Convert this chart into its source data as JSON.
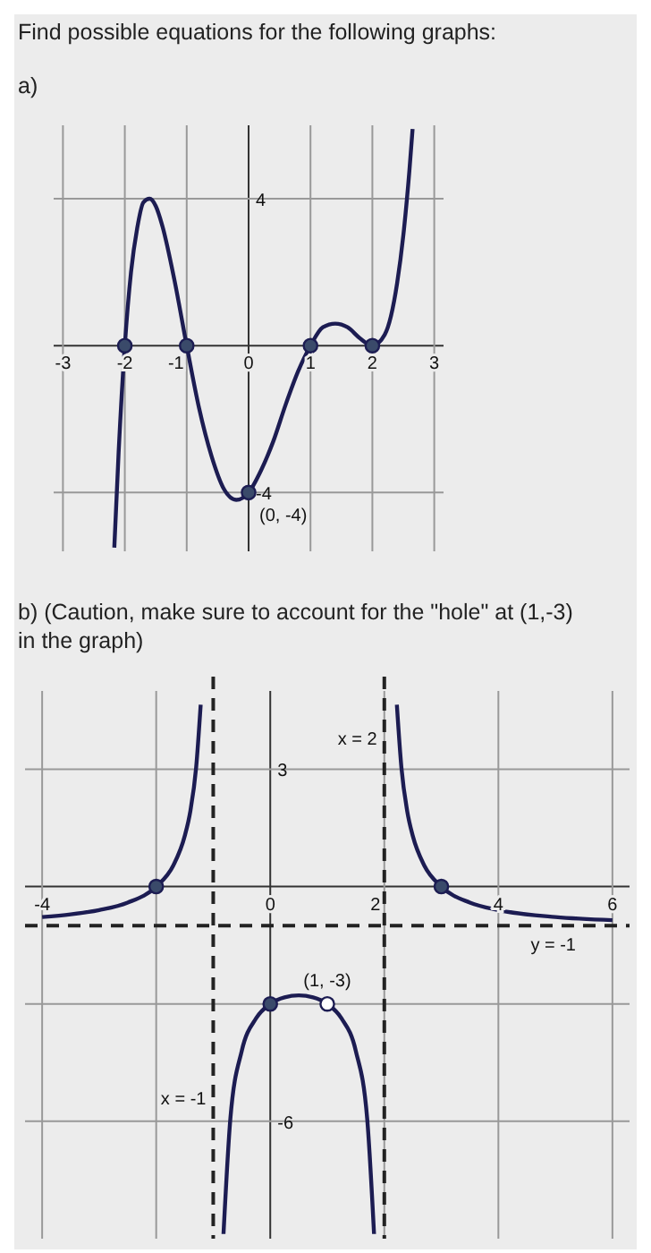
{
  "chart_data": [
    {
      "type": "line",
      "title": "Find possible equations for the following graphs:",
      "subtitle": "a)",
      "xlim": [
        -3.15,
        3.15
      ],
      "ylim": [
        -5.6,
        6
      ],
      "xticks": [
        -3,
        -2,
        -1,
        0,
        1,
        2,
        3
      ],
      "yticks": [
        {
          "value": -4,
          "label": "-4"
        },
        4
      ],
      "grid": true,
      "series": [
        {
          "type": "line",
          "color": "#1c1c52",
          "x": [
            -2.17,
            -2.1,
            -2,
            -1.9,
            -1.8,
            -1.7,
            -1.6,
            -1.5,
            -1.4,
            -1.2,
            -1,
            -0.8,
            -0.6,
            -0.4,
            -0.2,
            0,
            0.2,
            0.4,
            0.6,
            0.8,
            1,
            1.2,
            1.4,
            1.6,
            1.8,
            2,
            2.2,
            2.4,
            2.5,
            2.6,
            2.65
          ],
          "values": [
            -5.5,
            -2.9,
            0,
            2,
            3.2,
            3.9,
            4,
            3.8,
            3.3,
            1.8,
            0,
            -1.7,
            -3,
            -3.9,
            -4.2,
            -4,
            -3.4,
            -2.6,
            -1.6,
            -0.7,
            0,
            0.5,
            0.6,
            0.5,
            0.2,
            0,
            0.3,
            1.7,
            3,
            4.8,
            5.9
          ]
        },
        {
          "type": "scatter",
          "marker": "circle",
          "color": "#3a4a6a",
          "x": [
            -2,
            -1,
            0,
            1,
            2
          ],
          "values": [
            0,
            0,
            -4,
            0,
            0
          ]
        }
      ],
      "annotations": [
        {
          "text": "(0, -4)",
          "x": 0,
          "y": -4
        }
      ]
    },
    {
      "type": "line",
      "title": "b) (Caution, make sure to account for the \"hole\" at (1,-3) in the graph)",
      "xlim": [
        -4.3,
        6.3
      ],
      "ylim": [
        -9,
        5
      ],
      "xticks": [
        -4,
        {
          "value": -2,
          "label": null
        },
        0,
        2,
        4,
        6
      ],
      "yticks": [
        {
          "value": -6,
          "label": "-6"
        },
        {
          "value": -3,
          "label": null
        },
        3
      ],
      "grid": true,
      "series": [
        {
          "type": "line",
          "color": "#1c1c52",
          "x": [
            -4,
            -3.5,
            -3,
            -2.5,
            -2,
            -1.7,
            -1.5,
            -1.4,
            -1.3,
            -1.22
          ],
          "values": [
            -0.78,
            -0.71,
            -0.6,
            -0.41,
            0,
            0.54,
            1.29,
            1.94,
            3.04,
            4.65
          ]
        },
        {
          "type": "line",
          "color": "#1c1c52",
          "x": [
            -0.82,
            -0.7,
            -0.5,
            -0.25,
            0,
            0.25,
            0.5,
            0.75,
            1,
            1.25,
            1.5,
            1.7,
            1.82
          ],
          "values": [
            -8.88,
            -5.94,
            -4.2,
            -3.37,
            -3,
            -2.83,
            -2.78,
            -2.83,
            -3,
            -3.37,
            -4.2,
            -5.94,
            -8.88
          ]
        },
        {
          "type": "line",
          "color": "#1c1c52",
          "x": [
            2.22,
            2.3,
            2.4,
            2.5,
            2.7,
            3,
            3.5,
            4,
            5,
            6
          ],
          "values": [
            4.65,
            3.04,
            1.94,
            1.29,
            0.54,
            0,
            -0.41,
            -0.6,
            -0.78,
            -0.86
          ]
        },
        {
          "type": "scatter",
          "marker": "circle",
          "color": "#3a4a6a",
          "x": [
            -2,
            0,
            3
          ],
          "values": [
            0,
            -3,
            0
          ]
        },
        {
          "type": "scatter",
          "marker": "circle",
          "color": "#ffffff",
          "x": [
            1
          ],
          "values": [
            -3
          ]
        }
      ],
      "ref_lines": [
        {
          "axis": "x",
          "value": -1,
          "label": "x = -1",
          "line_style": "dashed"
        },
        {
          "axis": "x",
          "value": 2,
          "label": "x = 2",
          "line_style": "dashed"
        },
        {
          "axis": "y",
          "value": -1,
          "label": "y = -1",
          "line_style": "dashed"
        }
      ],
      "annotations": [
        {
          "text": "(1, -3)",
          "x": 1,
          "y": -3
        }
      ]
    }
  ]
}
